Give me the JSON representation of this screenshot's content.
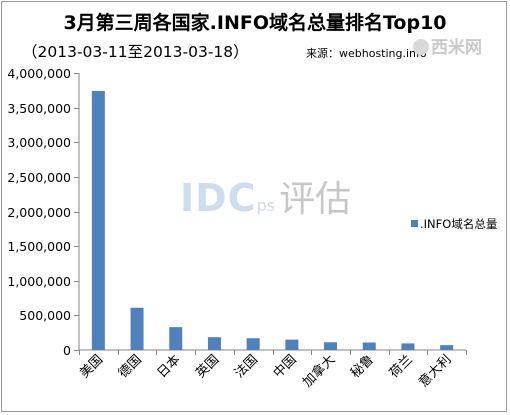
{
  "header": {
    "title": "3月第三周各国家.INFO域名总量排名Top10",
    "subtitle": "（2013-03-11至2013-03-18）",
    "source": "来源：webhosting.info",
    "logo_text": "西米网"
  },
  "watermark": {
    "idc": "IDC",
    "ps": "ps",
    "cn": "评估"
  },
  "colors": {
    "bar": "#4f81bd",
    "axis": "#868686",
    "text": "#000000"
  },
  "chart_data": {
    "type": "bar",
    "title": "3月第三周各国家.INFO域名总量排名Top10",
    "subtitle": "（2013-03-11至2013-03-18）",
    "categories": [
      "美国",
      "德国",
      "日本",
      "英国",
      "法国",
      "中国",
      "加拿大",
      "秘鲁",
      "荷兰",
      "意大利"
    ],
    "series": [
      {
        "name": ".INFO域名总量",
        "values": [
          3740000,
          610000,
          330000,
          185000,
          170000,
          150000,
          112000,
          108000,
          95000,
          70000
        ]
      }
    ],
    "ylim": [
      0,
      4000000
    ],
    "yticks": [
      0,
      500000,
      1000000,
      1500000,
      2000000,
      2500000,
      3000000,
      3500000,
      4000000
    ],
    "ytick_labels": [
      "0",
      "500,000",
      "1,000,000",
      "1,500,000",
      "2,000,000",
      "2,500,000",
      "3,000,000",
      "3,500,000",
      "4,000,000"
    ],
    "grid": false,
    "legend_position": "right"
  }
}
